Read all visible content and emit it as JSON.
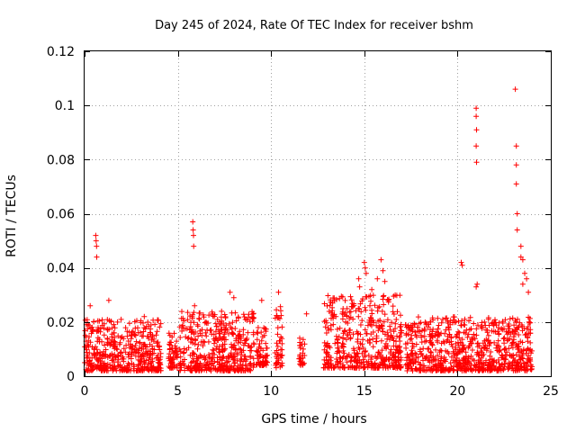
{
  "chart_data": {
    "type": "scatter",
    "title": "Day 245 of 2024, Rate Of TEC Index for receiver bshm",
    "xlabel": "GPS time / hours",
    "ylabel": "ROTI / TECUs",
    "xlim": [
      0,
      25
    ],
    "ylim": [
      0,
      0.12
    ],
    "xticks": [
      0,
      5,
      10,
      15,
      20,
      25
    ],
    "xtick_labels": [
      "0",
      "5",
      "10",
      "15",
      "20",
      "25"
    ],
    "yticks": [
      0,
      0.02,
      0.04,
      0.06,
      0.08,
      0.1,
      0.12
    ],
    "ytick_labels": [
      "0",
      "0.02",
      "0.04",
      "0.06",
      "0.08",
      "0.1",
      "0.12"
    ],
    "grid": true,
    "marker": "+",
    "color": "#ff0000",
    "series": [
      {
        "name": "ROTI",
        "segments": [
          {
            "start": 0.0,
            "end": 4.1,
            "low": 0.002,
            "high": 0.021
          },
          {
            "start": 4.5,
            "end": 5.0,
            "low": 0.003,
            "high": 0.016
          },
          {
            "start": 5.1,
            "end": 9.1,
            "low": 0.002,
            "high": 0.024
          },
          {
            "start": 9.2,
            "end": 9.8,
            "low": 0.004,
            "high": 0.018
          },
          {
            "start": 10.2,
            "end": 10.6,
            "low": 0.003,
            "high": 0.026
          },
          {
            "start": 11.5,
            "end": 11.8,
            "low": 0.004,
            "high": 0.015
          },
          {
            "start": 12.8,
            "end": 17.0,
            "low": 0.003,
            "high": 0.03
          },
          {
            "start": 17.2,
            "end": 24.0,
            "low": 0.002,
            "high": 0.022
          }
        ],
        "peaks": [
          {
            "x": 0.3,
            "y": 0.026
          },
          {
            "x": 0.6,
            "y": 0.052
          },
          {
            "x": 0.62,
            "y": 0.05
          },
          {
            "x": 0.64,
            "y": 0.048
          },
          {
            "x": 0.65,
            "y": 0.044
          },
          {
            "x": 1.3,
            "y": 0.028
          },
          {
            "x": 3.2,
            "y": 0.022
          },
          {
            "x": 5.8,
            "y": 0.057
          },
          {
            "x": 5.82,
            "y": 0.054
          },
          {
            "x": 5.84,
            "y": 0.052
          },
          {
            "x": 5.85,
            "y": 0.048
          },
          {
            "x": 5.9,
            "y": 0.026
          },
          {
            "x": 7.8,
            "y": 0.031
          },
          {
            "x": 8.0,
            "y": 0.029
          },
          {
            "x": 9.5,
            "y": 0.028
          },
          {
            "x": 10.4,
            "y": 0.031
          },
          {
            "x": 11.9,
            "y": 0.023
          },
          {
            "x": 13.3,
            "y": 0.027
          },
          {
            "x": 14.7,
            "y": 0.036
          },
          {
            "x": 14.75,
            "y": 0.033
          },
          {
            "x": 15.0,
            "y": 0.042
          },
          {
            "x": 15.05,
            "y": 0.04
          },
          {
            "x": 15.1,
            "y": 0.038
          },
          {
            "x": 15.4,
            "y": 0.032
          },
          {
            "x": 15.7,
            "y": 0.036
          },
          {
            "x": 15.9,
            "y": 0.043
          },
          {
            "x": 16.0,
            "y": 0.039
          },
          {
            "x": 16.1,
            "y": 0.035
          },
          {
            "x": 20.2,
            "y": 0.042
          },
          {
            "x": 20.25,
            "y": 0.041
          },
          {
            "x": 21.0,
            "y": 0.099
          },
          {
            "x": 21.0,
            "y": 0.096
          },
          {
            "x": 21.02,
            "y": 0.091
          },
          {
            "x": 21.0,
            "y": 0.085
          },
          {
            "x": 21.02,
            "y": 0.079
          },
          {
            "x": 21.05,
            "y": 0.034
          },
          {
            "x": 21.0,
            "y": 0.033
          },
          {
            "x": 23.1,
            "y": 0.106
          },
          {
            "x": 23.15,
            "y": 0.085
          },
          {
            "x": 23.15,
            "y": 0.078
          },
          {
            "x": 23.15,
            "y": 0.071
          },
          {
            "x": 23.2,
            "y": 0.06
          },
          {
            "x": 23.2,
            "y": 0.054
          },
          {
            "x": 23.4,
            "y": 0.048
          },
          {
            "x": 23.4,
            "y": 0.044
          },
          {
            "x": 23.5,
            "y": 0.043
          },
          {
            "x": 23.6,
            "y": 0.038
          },
          {
            "x": 23.7,
            "y": 0.036
          },
          {
            "x": 23.8,
            "y": 0.031
          },
          {
            "x": 23.5,
            "y": 0.034
          }
        ]
      }
    ]
  }
}
